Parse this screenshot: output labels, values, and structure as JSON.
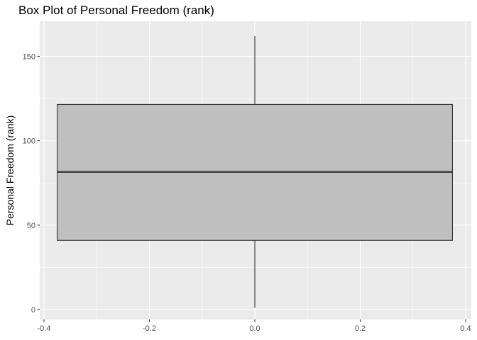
{
  "chart_data": {
    "type": "boxplot",
    "title": "Box Plot of Personal Freedom (rank)",
    "xlabel": "",
    "ylabel": "Personal Freedom (rank)",
    "xlim": [
      -0.4,
      0.4
    ],
    "ylim": [
      0,
      162
    ],
    "x_ticks": [
      -0.4,
      -0.2,
      0.0,
      0.2,
      0.4
    ],
    "x_tick_labels": [
      "-0.4",
      "-0.2",
      "0.0",
      "0.2",
      "0.4"
    ],
    "y_ticks": [
      0,
      50,
      100,
      150
    ],
    "y_tick_labels": [
      "0",
      "50",
      "100",
      "150"
    ],
    "box": {
      "x_center": 0.0,
      "width": 0.75,
      "min": 1,
      "q1": 41,
      "median": 81.5,
      "q3": 121.5,
      "max": 162
    },
    "grid": true,
    "legend": "none",
    "colors": {
      "panel": "#ebebeb",
      "grid": "#ffffff",
      "box_fill": "#bfbfbf",
      "box_line": "#333333"
    }
  }
}
